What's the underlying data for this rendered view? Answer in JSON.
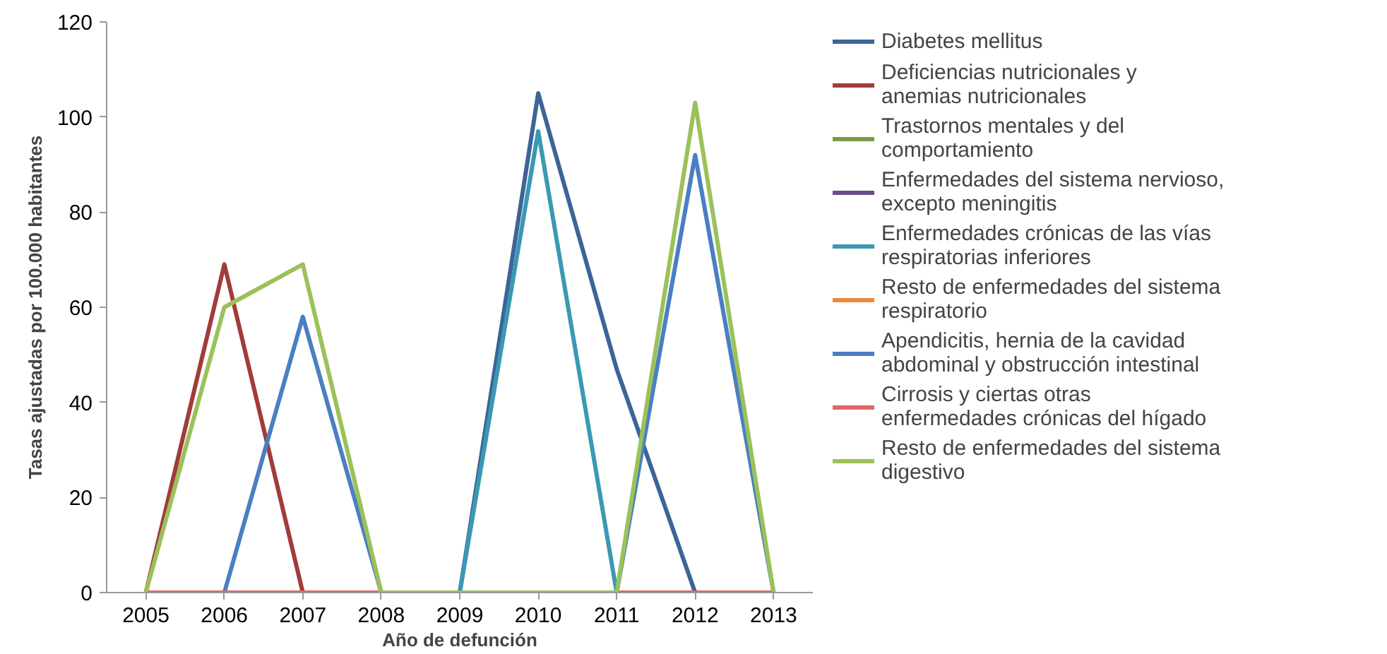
{
  "chart_data": {
    "type": "line",
    "xlabel": "Año de defunción",
    "ylabel": "Tasas ajustadas por 100.000 habitantes",
    "categories": [
      "2005",
      "2006",
      "2007",
      "2008",
      "2009",
      "2010",
      "2011",
      "2012",
      "2013"
    ],
    "ylim": [
      0,
      120
    ],
    "yticks": [
      0,
      20,
      40,
      60,
      80,
      100,
      120
    ],
    "grid": false,
    "legend": "right",
    "marker": "none",
    "line_style": "solid",
    "series": [
      {
        "name": "Diabetes mellitus",
        "color": "#3c6496",
        "values": [
          0,
          0,
          0,
          0,
          0,
          105,
          47,
          0,
          0
        ]
      },
      {
        "name": "Deficiencias nutricionales y anemias nutricionales",
        "color": "#a03c3a",
        "values": [
          0,
          69,
          0,
          0,
          null,
          null,
          null,
          null,
          null
        ]
      },
      {
        "name": "Trastornos mentales y del comportamiento",
        "color": "#7d9a48",
        "values": [
          null,
          null,
          null,
          null,
          null,
          null,
          null,
          null,
          null
        ]
      },
      {
        "name": "Enfermedades del sistema nervioso, excepto meningitis",
        "color": "#6a4c8f",
        "values": [
          null,
          null,
          null,
          null,
          null,
          null,
          null,
          null,
          null
        ]
      },
      {
        "name": "Enfermedades crónicas de las vías respiratorias inferiores",
        "color": "#3b98b3",
        "values": [
          0,
          0,
          null,
          0,
          0,
          97,
          0,
          0,
          0
        ]
      },
      {
        "name": "Resto de enfermedades del sistema respiratorio",
        "color": "#e88b3e",
        "values": [
          null,
          null,
          null,
          null,
          null,
          null,
          null,
          null,
          null
        ]
      },
      {
        "name": "Apendicitis, hernia de la cavidad abdominal y obstrucción intestinal",
        "color": "#4a7fc1",
        "values": [
          0,
          0,
          58,
          0,
          0,
          0,
          0,
          92,
          0
        ]
      },
      {
        "name": "Cirrosis y ciertas otras enfermedades crónicas del hígado",
        "color": "#e06666",
        "values": [
          0,
          0,
          0,
          0,
          0,
          0,
          0,
          0,
          0
        ]
      },
      {
        "name": "Resto de enfermedades del sistema digestivo",
        "color": "#9bc15a",
        "values": [
          0,
          60,
          69,
          0,
          0,
          0,
          0,
          103,
          0
        ]
      }
    ]
  }
}
